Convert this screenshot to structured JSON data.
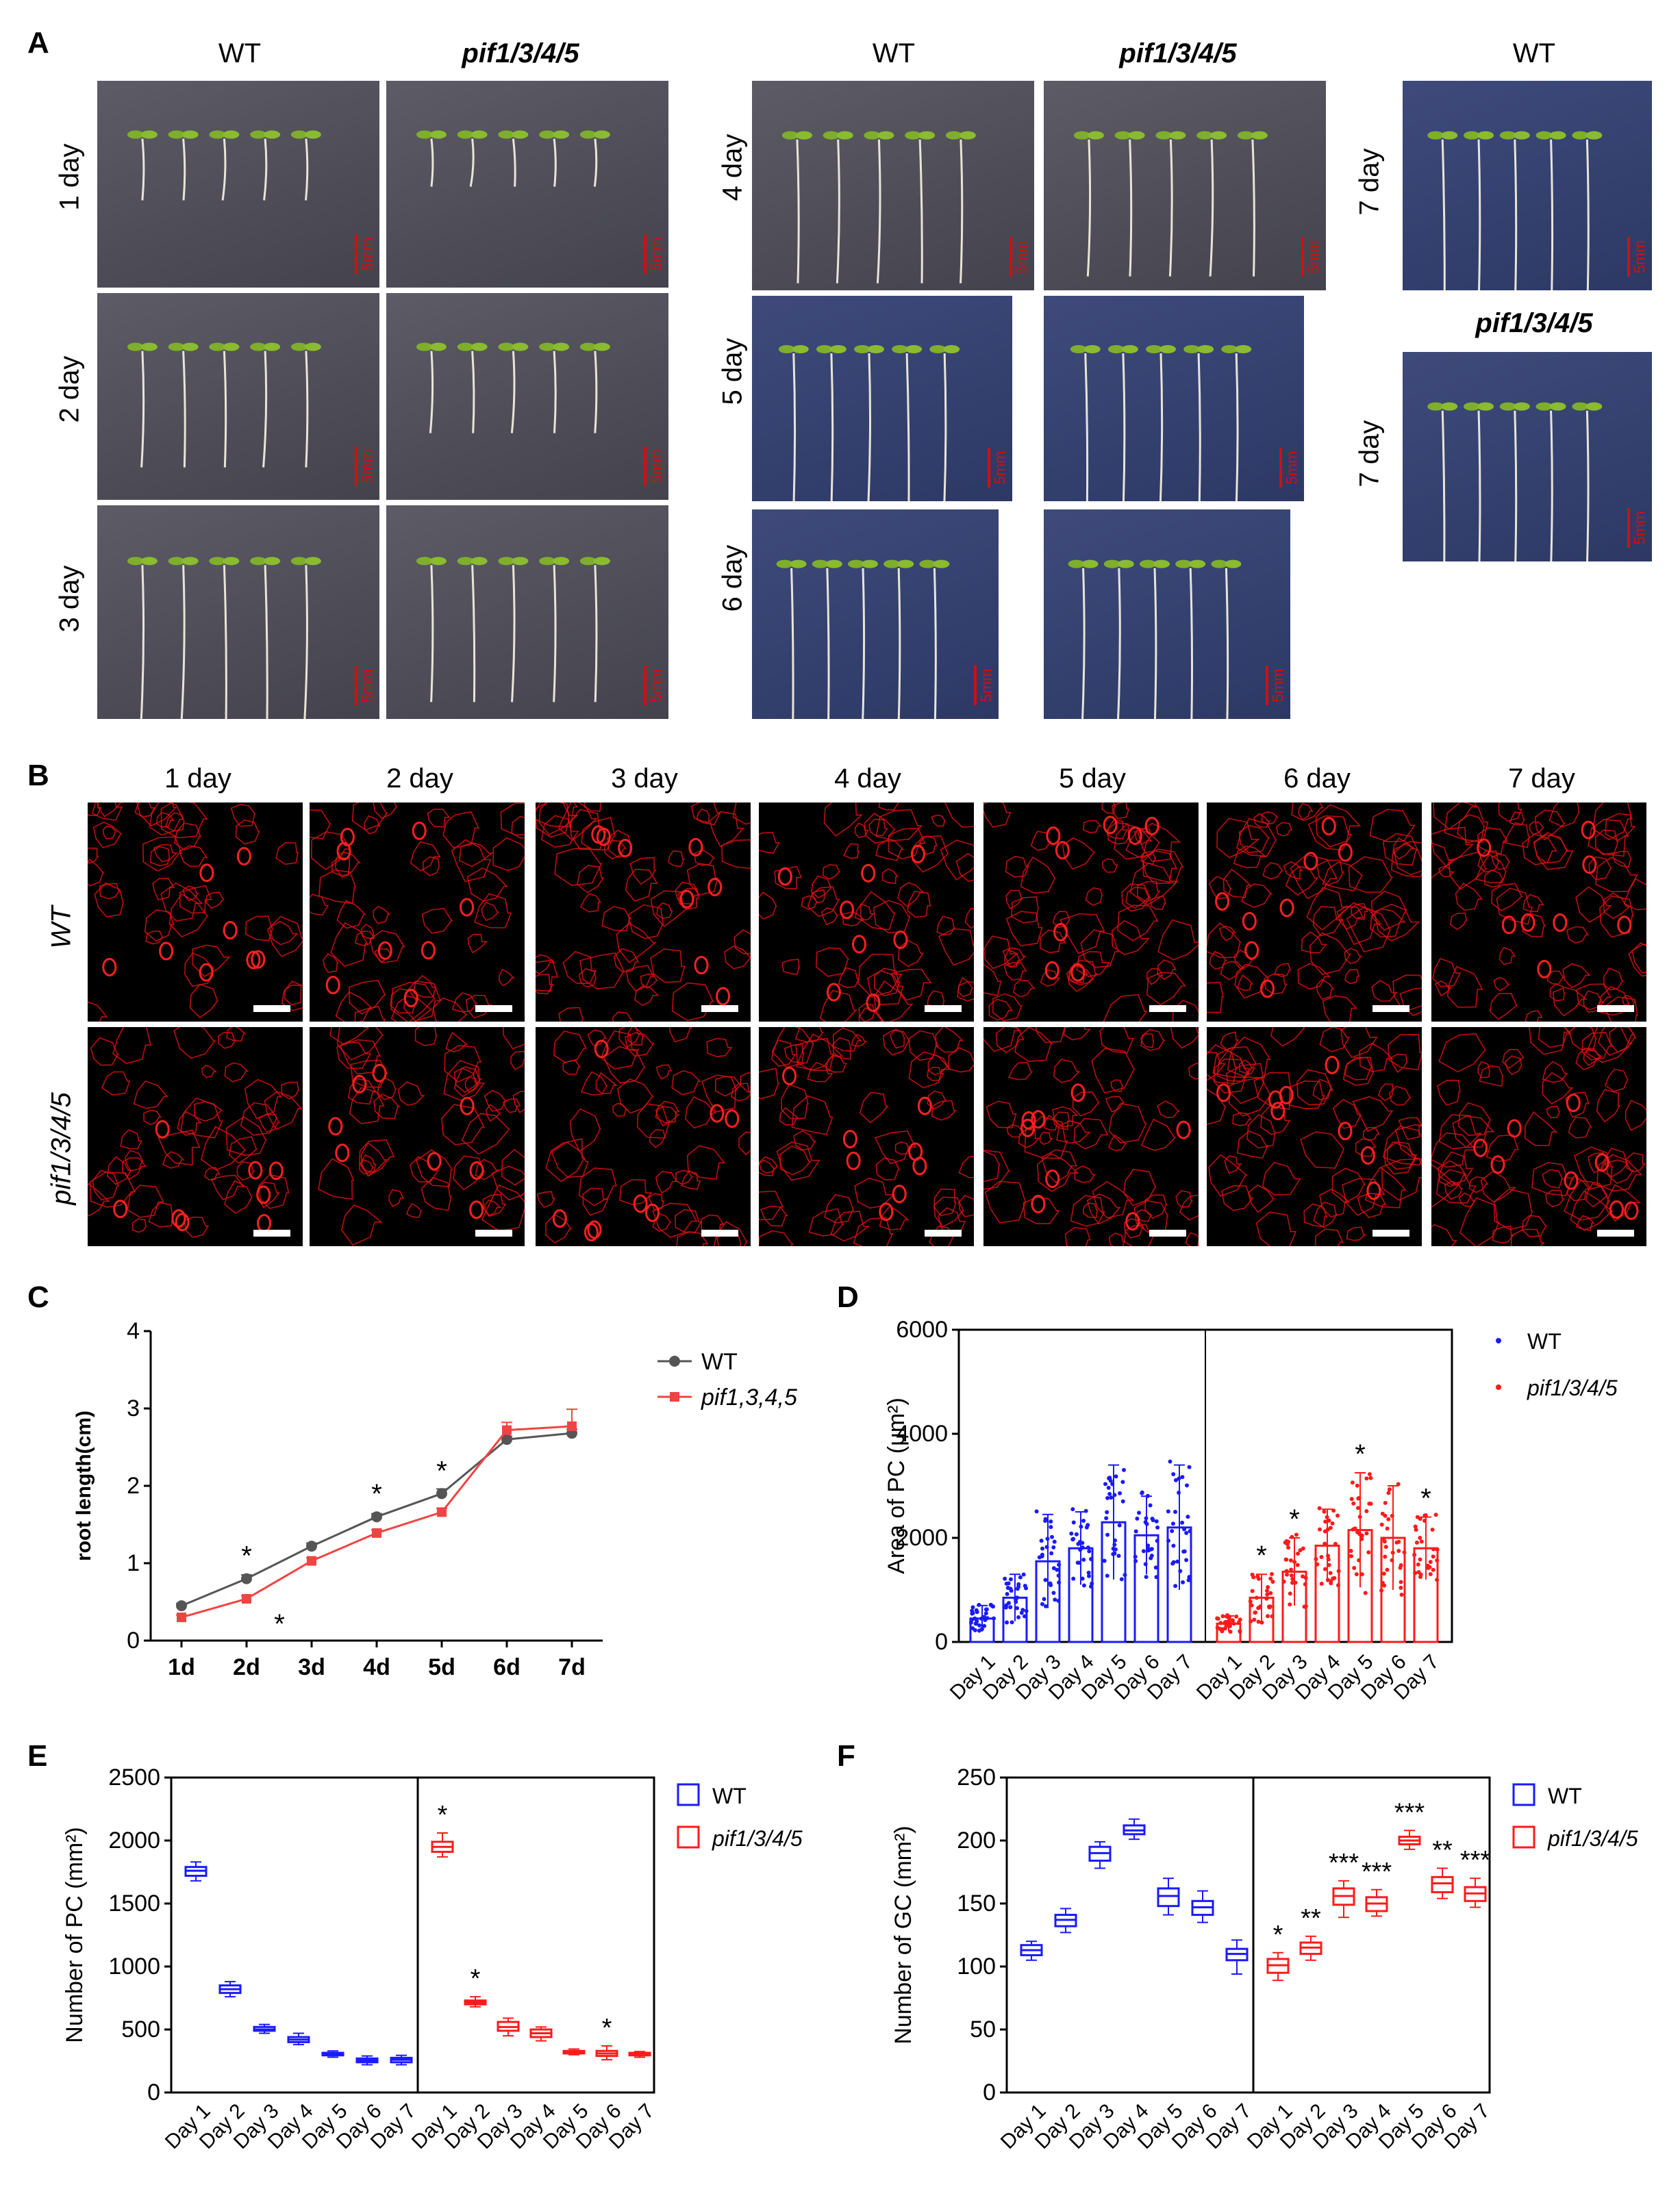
{
  "panel_labels": {
    "A": "A",
    "B": "B",
    "C": "C",
    "D": "D",
    "E": "E",
    "F": "F"
  },
  "panel_a": {
    "headers": {
      "wt": "WT",
      "mutant": "pif1/3/4/5"
    },
    "days": {
      "d1": "1 day",
      "d2": "2 day",
      "d3": "3 day",
      "d4": "4 day",
      "d5": "5 day",
      "d6": "6 day",
      "d7": "7 day"
    },
    "scale_label": "5mm"
  },
  "panel_b": {
    "days": [
      "1 day",
      "2 day",
      "3 day",
      "4 day",
      "5 day",
      "6 day",
      "7 day"
    ],
    "rows": {
      "wt": "WT",
      "mutant": "pif1/3/4/5"
    }
  },
  "chart_data": [
    {
      "panel": "C",
      "type": "line",
      "categories": [
        "1d",
        "2d",
        "3d",
        "4d",
        "5d",
        "6d",
        "7d"
      ],
      "ylabel": "root length(cm)",
      "ylim": [
        0,
        4
      ],
      "yticks": [
        "0",
        "1",
        "2",
        "3",
        "4"
      ],
      "series": [
        {
          "name": "WT",
          "color": "#555555",
          "values": [
            0.45,
            0.8,
            1.22,
            1.6,
            1.9,
            2.6,
            2.68
          ],
          "errors": [
            0.03,
            0.05,
            0.04,
            0.04,
            0.06,
            0.04,
            0.05
          ]
        },
        {
          "name": "pif1,3,4,5",
          "color": "#f04444",
          "values": [
            0.3,
            0.54,
            1.03,
            1.39,
            1.66,
            2.72,
            2.77
          ],
          "errors": [
            0.03,
            0.04,
            0.04,
            0.04,
            0.05,
            0.1,
            0.22
          ]
        }
      ],
      "annotations": [
        {
          "category": "2d",
          "series": "WT",
          "text": "*"
        },
        {
          "category": "2d",
          "series": "pif1,3,4,5",
          "text": "*"
        },
        {
          "category": "4d",
          "series": "WT",
          "text": "*"
        },
        {
          "category": "5d",
          "series": "WT",
          "text": "*"
        }
      ]
    },
    {
      "panel": "D",
      "type": "bar",
      "categories": [
        "Day 1",
        "Day 2",
        "Day 3",
        "Day 4",
        "Day 5",
        "Day 6",
        "Day 7"
      ],
      "ylabel": "Area of PC (μm²)",
      "ylim": [
        0,
        6000
      ],
      "yticks": [
        "0",
        "2000",
        "4000",
        "6000"
      ],
      "series": [
        {
          "name": "WT",
          "color": "#1a1aff",
          "values": [
            450,
            850,
            1550,
            1800,
            2300,
            2050,
            2200
          ],
          "errors": [
            250,
            450,
            900,
            700,
            1100,
            750,
            1200
          ]
        },
        {
          "name": "pif1/3/4/5",
          "color": "#ff1a1a",
          "values": [
            350,
            850,
            1350,
            1850,
            2150,
            2000,
            1800
          ],
          "errors": [
            150,
            450,
            650,
            700,
            1100,
            1000,
            600
          ]
        }
      ],
      "annotations": [
        {
          "series": "pif1/3/4/5",
          "category": "Day 2",
          "text": "*"
        },
        {
          "series": "pif1/3/4/5",
          "category": "Day 3",
          "text": "*"
        },
        {
          "series": "pif1/3/4/5",
          "category": "Day 5",
          "text": "*"
        },
        {
          "series": "pif1/3/4/5",
          "category": "Day 7",
          "text": "*"
        }
      ]
    },
    {
      "panel": "E",
      "type": "box",
      "categories": [
        "Day 1",
        "Day 2",
        "Day 3",
        "Day 4",
        "Day 5",
        "Day 6",
        "Day 7"
      ],
      "ylabel": "Number of PC (mm²)",
      "ylim": [
        0,
        2500
      ],
      "yticks": [
        "0",
        "500",
        "1000",
        "1500",
        "2000",
        "2500"
      ],
      "series": [
        {
          "name": "WT",
          "color": "#1a1aff",
          "box": [
            [
              1680,
              1720,
              1760,
              1790,
              1830
            ],
            [
              760,
              790,
              820,
              850,
              880
            ],
            [
              470,
              490,
              500,
              520,
              540
            ],
            [
              380,
              400,
              420,
              440,
              470
            ],
            [
              280,
              295,
              305,
              315,
              330
            ],
            [
              220,
              240,
              255,
              270,
              290
            ],
            [
              220,
              240,
              260,
              275,
              295
            ]
          ]
        },
        {
          "name": "pif1/3/4/5",
          "color": "#ff1a1a",
          "box": [
            [
              1870,
              1910,
              1950,
              1990,
              2060
            ],
            [
              680,
              700,
              715,
              730,
              760
            ],
            [
              450,
              490,
              520,
              560,
              590
            ],
            [
              410,
              440,
              470,
              500,
              520
            ],
            [
              300,
              310,
              320,
              330,
              345
            ],
            [
              260,
              290,
              310,
              330,
              370
            ],
            [
              280,
              295,
              305,
              315,
              325
            ]
          ]
        }
      ],
      "annotations": [
        {
          "series": "pif1/3/4/5",
          "category": "Day 1",
          "text": "*"
        },
        {
          "series": "pif1/3/4/5",
          "category": "Day 2",
          "text": "*"
        },
        {
          "series": "pif1/3/4/5",
          "category": "Day 6",
          "text": "*"
        }
      ]
    },
    {
      "panel": "F",
      "type": "box",
      "categories": [
        "Day 1",
        "Day 2",
        "Day 3",
        "Day 4",
        "Day 5",
        "Day 6",
        "Day 7"
      ],
      "ylabel": "Number of GC (mm²)",
      "ylim": [
        0,
        250
      ],
      "yticks": [
        "0",
        "50",
        "100",
        "150",
        "200",
        "250"
      ],
      "series": [
        {
          "name": "WT",
          "color": "#1a1aff",
          "box": [
            [
              105,
              109,
              113,
              117,
              120
            ],
            [
              127,
              132,
              137,
              141,
              146
            ],
            [
              178,
              184,
              190,
              195,
              199
            ],
            [
              201,
              205,
              208,
              212,
              217
            ],
            [
              141,
              148,
              156,
              162,
              170
            ],
            [
              135,
              141,
              147,
              152,
              160
            ],
            [
              94,
              105,
              110,
              114,
              121
            ]
          ]
        },
        {
          "name": "pif1/3/4/5",
          "color": "#ff1a1a",
          "box": [
            [
              89,
              95,
              101,
              106,
              111
            ],
            [
              105,
              110,
              115,
              119,
              124
            ],
            [
              139,
              149,
              156,
              162,
              168
            ],
            [
              140,
              144,
              150,
              155,
              161
            ],
            [
              193,
              197,
              200,
              203,
              208
            ],
            [
              154,
              159,
              166,
              171,
              178
            ],
            [
              147,
              152,
              158,
              163,
              170
            ]
          ]
        }
      ],
      "annotations": [
        {
          "series": "pif1/3/4/5",
          "category": "Day 1",
          "text": "*"
        },
        {
          "series": "pif1/3/4/5",
          "category": "Day 2",
          "text": "**"
        },
        {
          "series": "pif1/3/4/5",
          "category": "Day 3",
          "text": "***"
        },
        {
          "series": "pif1/3/4/5",
          "category": "Day 4",
          "text": "***"
        },
        {
          "series": "pif1/3/4/5",
          "category": "Day 5",
          "text": "***"
        },
        {
          "series": "pif1/3/4/5",
          "category": "Day 6",
          "text": "**"
        },
        {
          "series": "pif1/3/4/5",
          "category": "Day 7",
          "text": "***"
        }
      ]
    }
  ]
}
